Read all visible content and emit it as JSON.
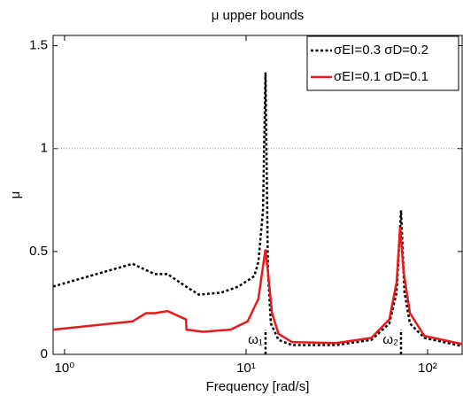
{
  "chart_data": {
    "type": "line",
    "title": "μ upper bounds",
    "x_label": "Frequency [rad/s]",
    "y_label": "μ",
    "x_scale": "log",
    "xlim": [
      0.865,
      155
    ],
    "ylim": [
      0,
      1.55
    ],
    "xticks": [
      {
        "value": 1,
        "label": "10⁰"
      },
      {
        "value": 10,
        "label": "10¹"
      },
      {
        "value": 100,
        "label": "10²"
      }
    ],
    "yticks": [
      0,
      0.5,
      1,
      1.5
    ],
    "reference_line": 1,
    "legend": "upper right",
    "series": [
      {
        "name": "σEI=0.3 σD=0.2",
        "color": "#000000",
        "dash": "dotted",
        "x": [
          0.865,
          2.37,
          3.14,
          3.7,
          4.66,
          5.5,
          7.3,
          9.1,
          11.1,
          11.7,
          12.4,
          12.8,
          13.2,
          13.7,
          15.1,
          17.9,
          31.5,
          49,
          61.6,
          67.5,
          71.4,
          74.6,
          80,
          96,
          155
        ],
        "values": [
          0.33,
          0.44,
          0.39,
          0.39,
          0.33,
          0.29,
          0.3,
          0.33,
          0.38,
          0.45,
          0.7,
          1.37,
          0.4,
          0.15,
          0.07,
          0.045,
          0.045,
          0.07,
          0.15,
          0.3,
          0.7,
          0.3,
          0.15,
          0.08,
          0.04
        ]
      },
      {
        "name": "σEI=0.1 σD=0.1",
        "color": "#e8191b",
        "dash": "solid",
        "x": [
          0.865,
          2.37,
          2.81,
          3.14,
          3.7,
          4.4,
          4.66,
          4.7,
          5.8,
          8.2,
          10.2,
          11.7,
          12.5,
          12.8,
          13.2,
          13.9,
          15.1,
          17.9,
          31.5,
          49,
          61.6,
          67.5,
          70.6,
          73.8,
          80,
          96,
          155
        ],
        "values": [
          0.12,
          0.16,
          0.2,
          0.2,
          0.21,
          0.18,
          0.17,
          0.12,
          0.11,
          0.12,
          0.16,
          0.27,
          0.45,
          0.51,
          0.4,
          0.2,
          0.1,
          0.06,
          0.055,
          0.08,
          0.17,
          0.35,
          0.62,
          0.4,
          0.2,
          0.09,
          0.05
        ]
      }
    ],
    "annotations": [
      {
        "text": "ω₁",
        "x": 12.8
      },
      {
        "text": "ω₂",
        "x": 71.4
      }
    ]
  }
}
